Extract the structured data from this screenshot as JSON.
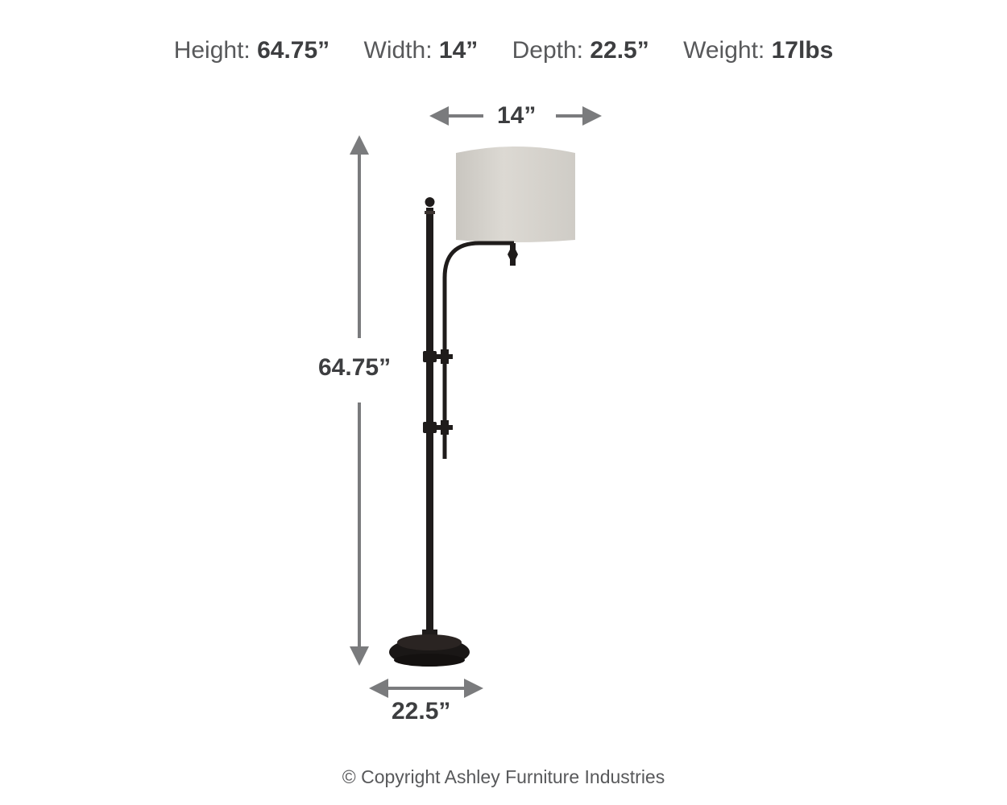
{
  "header": {
    "items": [
      {
        "label": "Height:",
        "value": "64.75”"
      },
      {
        "label": "Width:",
        "value": "14”"
      },
      {
        "label": "Depth:",
        "value": "22.5”"
      },
      {
        "label": "Weight:",
        "value": "17lbs"
      }
    ]
  },
  "dimensions": {
    "width": "14”",
    "height": "64.75”",
    "depth": "22.5”"
  },
  "footer": {
    "copyright": "© Copyright Ashley Furniture Industries"
  },
  "colors": {
    "arrow": "#7a7b7d",
    "text": "#58595b",
    "shade": "#d8d5cf",
    "metal": "#1f1c1b"
  }
}
